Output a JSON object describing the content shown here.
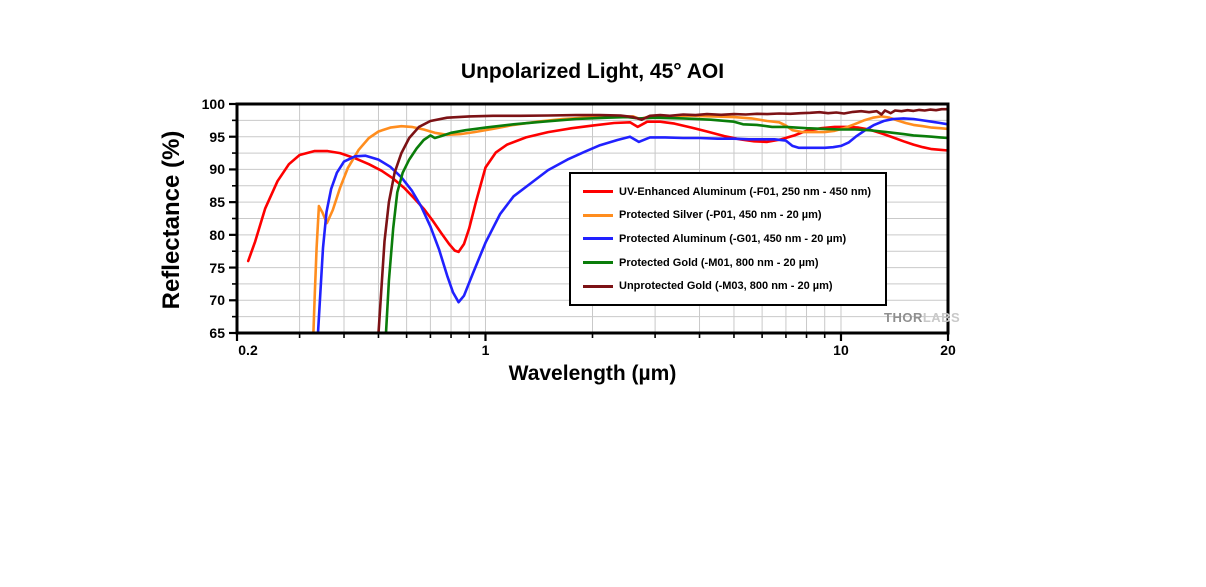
{
  "watermark": {
    "thor": "THOR",
    "labs": "LABS"
  },
  "chart_data": {
    "type": "line",
    "title": "Unpolarized Light, 45° AOI",
    "xlabel": "Wavelength (µm)",
    "ylabel": "Reflectance (%)",
    "x_scale": "log",
    "xlim": [
      0.2,
      20
    ],
    "ylim": [
      65,
      100
    ],
    "grid": true,
    "legend_position": "inside-right",
    "x_major_ticks": [
      0.2,
      1,
      10,
      20
    ],
    "x_major_labels": [
      "0.2",
      "1",
      "10",
      "20"
    ],
    "x_minor_ticks": [
      0.3,
      0.4,
      0.5,
      0.6,
      0.7,
      0.8,
      0.9,
      2,
      3,
      4,
      5,
      6,
      7,
      8,
      9
    ],
    "x_gridlines": [
      0.3,
      0.4,
      0.5,
      0.6,
      0.7,
      0.8,
      0.9,
      1,
      2,
      3,
      4,
      5,
      6,
      7,
      8,
      9,
      10
    ],
    "y_major_ticks": [
      65,
      70,
      75,
      80,
      85,
      90,
      95,
      100
    ],
    "y_minor_step": 2.5,
    "grid_color": "#c9c9c9",
    "frame_color": "#000000",
    "series": [
      {
        "name": "UV-Enhanced Aluminum (-F01, 250 nm - 450 nm)",
        "color": "#fe0000",
        "points": [
          [
            0.215,
            76.0
          ],
          [
            0.225,
            79.0
          ],
          [
            0.24,
            84.0
          ],
          [
            0.26,
            88.2
          ],
          [
            0.28,
            90.8
          ],
          [
            0.3,
            92.2
          ],
          [
            0.33,
            92.8
          ],
          [
            0.36,
            92.8
          ],
          [
            0.39,
            92.5
          ],
          [
            0.43,
            91.7
          ],
          [
            0.47,
            90.8
          ],
          [
            0.51,
            89.8
          ],
          [
            0.55,
            88.6
          ],
          [
            0.59,
            87.2
          ],
          [
            0.63,
            85.6
          ],
          [
            0.67,
            84.0
          ],
          [
            0.71,
            82.2
          ],
          [
            0.75,
            80.3
          ],
          [
            0.79,
            78.6
          ],
          [
            0.82,
            77.6
          ],
          [
            0.84,
            77.4
          ],
          [
            0.87,
            78.6
          ],
          [
            0.9,
            81.0
          ],
          [
            0.94,
            85.0
          ],
          [
            1.0,
            90.3
          ],
          [
            1.07,
            92.6
          ],
          [
            1.15,
            93.8
          ],
          [
            1.3,
            94.9
          ],
          [
            1.5,
            95.7
          ],
          [
            1.75,
            96.3
          ],
          [
            2.0,
            96.7
          ],
          [
            2.3,
            97.1
          ],
          [
            2.55,
            97.2
          ],
          [
            2.68,
            96.5
          ],
          [
            2.85,
            97.3
          ],
          [
            3.1,
            97.3
          ],
          [
            3.4,
            97.0
          ],
          [
            3.8,
            96.4
          ],
          [
            4.2,
            95.8
          ],
          [
            4.7,
            95.1
          ],
          [
            5.2,
            94.6
          ],
          [
            5.7,
            94.3
          ],
          [
            6.2,
            94.2
          ],
          [
            6.8,
            94.6
          ],
          [
            7.4,
            95.2
          ],
          [
            8.0,
            95.9
          ],
          [
            8.8,
            96.3
          ],
          [
            9.6,
            96.5
          ],
          [
            10.4,
            96.5
          ],
          [
            11.2,
            96.4
          ],
          [
            12.0,
            96.1
          ],
          [
            13.0,
            95.5
          ],
          [
            14.0,
            94.9
          ],
          [
            15.0,
            94.3
          ],
          [
            16.0,
            93.8
          ],
          [
            17.0,
            93.4
          ],
          [
            18.0,
            93.1
          ],
          [
            19.0,
            93.0
          ],
          [
            20.0,
            92.9
          ]
        ]
      },
      {
        "name": "Protected Silver (-P01, 450 nm - 20 µm)",
        "color": "#ff8d1e",
        "points": [
          [
            0.328,
            65
          ],
          [
            0.331,
            71
          ],
          [
            0.335,
            78
          ],
          [
            0.34,
            84.4
          ],
          [
            0.348,
            83.4
          ],
          [
            0.358,
            81.8
          ],
          [
            0.372,
            83.8
          ],
          [
            0.39,
            87.2
          ],
          [
            0.41,
            90.2
          ],
          [
            0.44,
            93.0
          ],
          [
            0.47,
            94.8
          ],
          [
            0.5,
            95.8
          ],
          [
            0.54,
            96.4
          ],
          [
            0.58,
            96.6
          ],
          [
            0.62,
            96.5
          ],
          [
            0.67,
            96.1
          ],
          [
            0.72,
            95.6
          ],
          [
            0.78,
            95.3
          ],
          [
            0.85,
            95.4
          ],
          [
            0.93,
            95.7
          ],
          [
            1.05,
            96.2
          ],
          [
            1.2,
            96.8
          ],
          [
            1.4,
            97.3
          ],
          [
            1.65,
            97.7
          ],
          [
            1.9,
            97.9
          ],
          [
            2.2,
            98.1
          ],
          [
            2.45,
            98.1
          ],
          [
            2.6,
            98.1
          ],
          [
            2.72,
            97.7
          ],
          [
            2.9,
            98.1
          ],
          [
            3.3,
            98.2
          ],
          [
            3.8,
            98.2
          ],
          [
            4.4,
            98.1
          ],
          [
            5.0,
            98.0
          ],
          [
            5.6,
            97.8
          ],
          [
            6.2,
            97.4
          ],
          [
            6.7,
            97.2
          ],
          [
            7.0,
            96.7
          ],
          [
            7.3,
            96.0
          ],
          [
            7.8,
            95.7
          ],
          [
            8.4,
            95.7
          ],
          [
            9.0,
            95.7
          ],
          [
            9.6,
            95.9
          ],
          [
            10.2,
            96.3
          ],
          [
            10.9,
            96.9
          ],
          [
            11.6,
            97.5
          ],
          [
            12.3,
            97.9
          ],
          [
            13.0,
            98.1
          ],
          [
            13.7,
            97.9
          ],
          [
            14.4,
            97.5
          ],
          [
            15.2,
            97.1
          ],
          [
            16.0,
            96.8
          ],
          [
            17.0,
            96.6
          ],
          [
            18.0,
            96.4
          ],
          [
            19.0,
            96.3
          ],
          [
            20.0,
            96.2
          ]
        ]
      },
      {
        "name": "Protected Aluminum (-G01, 450 nm - 20 µm)",
        "color": "#2121ff",
        "points": [
          [
            0.338,
            65
          ],
          [
            0.343,
            71
          ],
          [
            0.349,
            78
          ],
          [
            0.357,
            83.5
          ],
          [
            0.368,
            87.0
          ],
          [
            0.382,
            89.5
          ],
          [
            0.4,
            91.2
          ],
          [
            0.43,
            92.0
          ],
          [
            0.46,
            92.1
          ],
          [
            0.5,
            91.5
          ],
          [
            0.54,
            90.4
          ],
          [
            0.58,
            88.8
          ],
          [
            0.62,
            86.8
          ],
          [
            0.66,
            84.3
          ],
          [
            0.7,
            81.3
          ],
          [
            0.74,
            77.8
          ],
          [
            0.78,
            73.8
          ],
          [
            0.81,
            71.2
          ],
          [
            0.84,
            69.7
          ],
          [
            0.87,
            70.7
          ],
          [
            0.92,
            74.0
          ],
          [
            1.0,
            78.8
          ],
          [
            1.1,
            83.2
          ],
          [
            1.2,
            85.9
          ],
          [
            1.35,
            88.0
          ],
          [
            1.5,
            89.9
          ],
          [
            1.7,
            91.5
          ],
          [
            1.9,
            92.7
          ],
          [
            2.1,
            93.7
          ],
          [
            2.35,
            94.5
          ],
          [
            2.55,
            95.0
          ],
          [
            2.7,
            94.2
          ],
          [
            2.9,
            94.9
          ],
          [
            3.2,
            94.9
          ],
          [
            3.6,
            94.8
          ],
          [
            4.0,
            94.8
          ],
          [
            4.5,
            94.7
          ],
          [
            5.0,
            94.7
          ],
          [
            5.5,
            94.6
          ],
          [
            6.0,
            94.6
          ],
          [
            6.5,
            94.6
          ],
          [
            7.0,
            94.4
          ],
          [
            7.3,
            93.6
          ],
          [
            7.6,
            93.3
          ],
          [
            8.0,
            93.3
          ],
          [
            8.5,
            93.3
          ],
          [
            9.0,
            93.3
          ],
          [
            9.5,
            93.4
          ],
          [
            10.0,
            93.6
          ],
          [
            10.5,
            94.1
          ],
          [
            11.0,
            95.0
          ],
          [
            11.7,
            96.0
          ],
          [
            12.4,
            96.8
          ],
          [
            13.2,
            97.4
          ],
          [
            14.0,
            97.7
          ],
          [
            15.0,
            97.8
          ],
          [
            16.0,
            97.7
          ],
          [
            17.0,
            97.5
          ],
          [
            18.0,
            97.3
          ],
          [
            19.0,
            97.1
          ],
          [
            20.0,
            96.9
          ]
        ]
      },
      {
        "name": "Protected Gold (-M01, 800 nm - 20 µm)",
        "color": "#0a7d0a",
        "points": [
          [
            0.525,
            65
          ],
          [
            0.535,
            73
          ],
          [
            0.55,
            81
          ],
          [
            0.565,
            86.5
          ],
          [
            0.585,
            89.5
          ],
          [
            0.61,
            91.5
          ],
          [
            0.64,
            93.2
          ],
          [
            0.67,
            94.5
          ],
          [
            0.7,
            95.2
          ],
          [
            0.72,
            94.8
          ],
          [
            0.75,
            95.1
          ],
          [
            0.8,
            95.6
          ],
          [
            0.88,
            96.0
          ],
          [
            1.0,
            96.4
          ],
          [
            1.2,
            96.9
          ],
          [
            1.45,
            97.3
          ],
          [
            1.8,
            97.7
          ],
          [
            2.2,
            97.9
          ],
          [
            2.5,
            98.0
          ],
          [
            2.7,
            97.8
          ],
          [
            3.0,
            97.9
          ],
          [
            3.6,
            97.8
          ],
          [
            4.3,
            97.6
          ],
          [
            5.0,
            97.3
          ],
          [
            5.3,
            96.9
          ],
          [
            5.8,
            96.8
          ],
          [
            6.4,
            96.5
          ],
          [
            7.0,
            96.5
          ],
          [
            8.0,
            96.3
          ],
          [
            9.0,
            96.2
          ],
          [
            10.0,
            96.1
          ],
          [
            11.0,
            96.1
          ],
          [
            12.0,
            96.0
          ],
          [
            13.0,
            95.8
          ],
          [
            14.0,
            95.6
          ],
          [
            15.0,
            95.4
          ],
          [
            16.0,
            95.2
          ],
          [
            17.0,
            95.1
          ],
          [
            18.0,
            95.0
          ],
          [
            19.0,
            94.9
          ],
          [
            20.0,
            94.8
          ]
        ]
      },
      {
        "name": "Unprotected Gold (-M03, 800 nm - 20 µm)",
        "color": "#7c1215",
        "points": [
          [
            0.5,
            65
          ],
          [
            0.51,
            72
          ],
          [
            0.52,
            79
          ],
          [
            0.535,
            85
          ],
          [
            0.555,
            89.5
          ],
          [
            0.58,
            92.5
          ],
          [
            0.61,
            94.8
          ],
          [
            0.65,
            96.5
          ],
          [
            0.7,
            97.4
          ],
          [
            0.78,
            97.9
          ],
          [
            0.9,
            98.1
          ],
          [
            1.05,
            98.2
          ],
          [
            1.25,
            98.2
          ],
          [
            1.5,
            98.25
          ],
          [
            1.8,
            98.3
          ],
          [
            2.1,
            98.3
          ],
          [
            2.4,
            98.25
          ],
          [
            2.6,
            98.0
          ],
          [
            2.75,
            97.6
          ],
          [
            2.9,
            98.2
          ],
          [
            3.1,
            98.3
          ],
          [
            3.3,
            98.2
          ],
          [
            3.6,
            98.4
          ],
          [
            3.9,
            98.3
          ],
          [
            4.2,
            98.45
          ],
          [
            4.6,
            98.35
          ],
          [
            5.0,
            98.45
          ],
          [
            5.4,
            98.4
          ],
          [
            5.8,
            98.5
          ],
          [
            6.2,
            98.45
          ],
          [
            6.7,
            98.55
          ],
          [
            7.2,
            98.5
          ],
          [
            7.7,
            98.6
          ],
          [
            8.2,
            98.65
          ],
          [
            8.7,
            98.75
          ],
          [
            9.2,
            98.6
          ],
          [
            9.7,
            98.7
          ],
          [
            10.2,
            98.55
          ],
          [
            10.8,
            98.8
          ],
          [
            11.4,
            98.9
          ],
          [
            12.0,
            98.75
          ],
          [
            12.6,
            98.9
          ],
          [
            13.0,
            98.4
          ],
          [
            13.3,
            99.0
          ],
          [
            13.8,
            98.6
          ],
          [
            14.2,
            99.0
          ],
          [
            14.8,
            98.9
          ],
          [
            15.4,
            99.05
          ],
          [
            16.0,
            98.95
          ],
          [
            16.6,
            99.1
          ],
          [
            17.2,
            99.0
          ],
          [
            17.8,
            99.15
          ],
          [
            18.5,
            99.05
          ],
          [
            19.2,
            99.2
          ],
          [
            20.0,
            99.2
          ]
        ]
      }
    ]
  }
}
